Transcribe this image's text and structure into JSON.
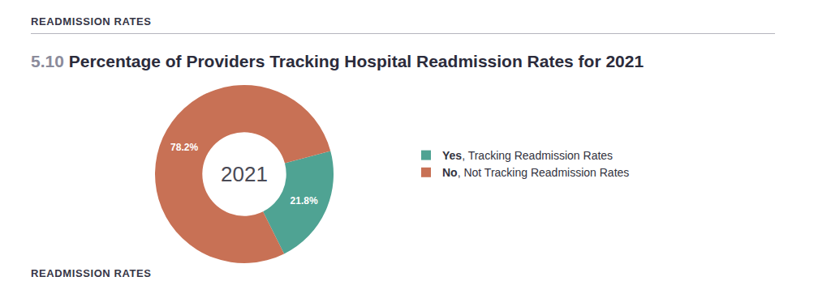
{
  "header": "READMISSION RATES",
  "footer": "READMISSION RATES",
  "chart_data": {
    "type": "pie",
    "title": "5.10 Percentage of Providers Tracking Hospital Readmission Rates for 2021",
    "annotations": [
      "2021"
    ],
    "categories": [
      "Yes, Tracking Readmission Rates",
      "No, Not Tracking Readmission Rates"
    ],
    "values": [
      21.8,
      78.2
    ],
    "value_labels": [
      "21.8%",
      "78.2%"
    ],
    "colors": [
      "#4fa393",
      "#c87155"
    ],
    "data_labels": true,
    "legend": "right"
  }
}
